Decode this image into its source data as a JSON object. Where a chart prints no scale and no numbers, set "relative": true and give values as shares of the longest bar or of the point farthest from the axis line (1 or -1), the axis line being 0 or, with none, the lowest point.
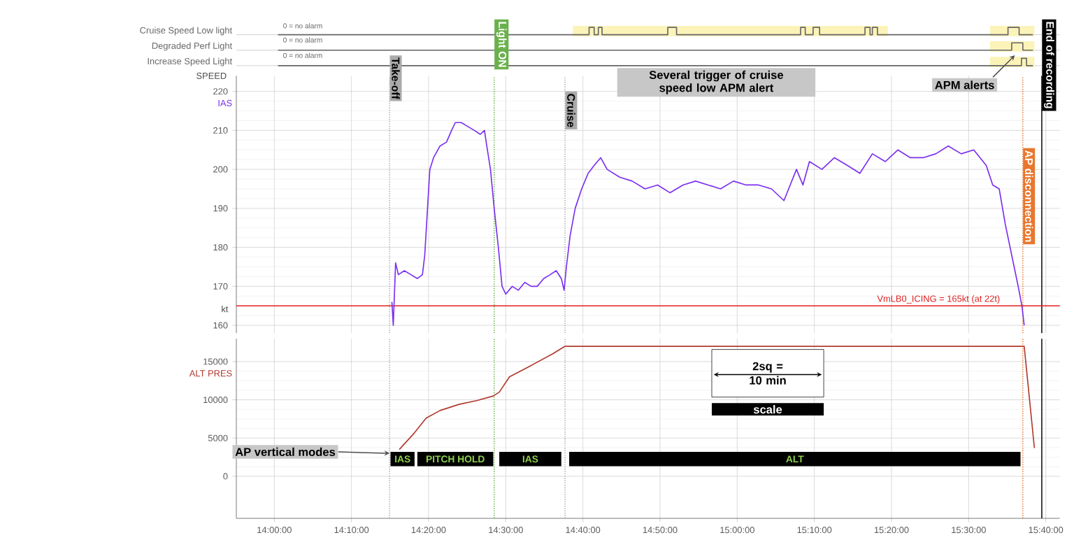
{
  "chart_data": [
    {
      "type": "step",
      "relative": true,
      "tick_labels": false,
      "xlim": [
        13.918,
        15.697
      ],
      "series": [
        {
          "name": "Cruise Speed Low light",
          "color": "#666666",
          "x": [
            14.008,
            14.68,
            14.691,
            14.7,
            14.708,
            14.85,
            14.869,
            15.137,
            15.147,
            15.164,
            15.178,
            15.276,
            15.287,
            15.292,
            15.303,
            15.585,
            15.609,
            15.639
          ],
          "values": [
            0,
            1,
            0,
            1,
            0,
            1,
            0,
            1,
            0,
            1,
            0,
            1,
            0,
            1,
            0,
            1,
            0,
            0
          ]
        }
      ],
      "bands": [
        {
          "axis": "x",
          "from": 14.645,
          "to": 15.325,
          "color": "#fbf3b8"
        },
        {
          "axis": "x",
          "from": 15.546,
          "to": 15.642,
          "color": "#fbf3b8"
        }
      ],
      "annotations": [
        "0 = no alarm"
      ]
    },
    {
      "type": "step",
      "relative": true,
      "tick_labels": false,
      "xlim": [
        13.918,
        15.697
      ],
      "series": [
        {
          "name": "Degraded Perf Light",
          "color": "#666666",
          "x": [
            14.008,
            15.593,
            15.617,
            15.639
          ],
          "values": [
            0,
            1,
            0,
            0
          ]
        }
      ],
      "bands": [
        {
          "axis": "x",
          "from": 15.546,
          "to": 15.642,
          "color": "#fbf3b8"
        }
      ],
      "annotations": [
        "0 = no alarm"
      ]
    },
    {
      "type": "step",
      "relative": true,
      "tick_labels": false,
      "xlim": [
        13.918,
        15.697
      ],
      "series": [
        {
          "name": "Increase Speed Light",
          "color": "#666666",
          "x": [
            14.008,
            15.614,
            15.625,
            15.639
          ],
          "values": [
            0,
            1,
            0,
            0
          ]
        }
      ],
      "bands": [
        {
          "axis": "x",
          "from": 15.546,
          "to": 15.642,
          "color": "#fbf3b8"
        }
      ],
      "annotations": [
        "0 = no alarm"
      ]
    },
    {
      "type": "line",
      "ylabel": "SPEED",
      "xlim": [
        13.918,
        15.697
      ],
      "ylim": [
        158,
        224
      ],
      "yticks": [
        160,
        170,
        180,
        190,
        200,
        210,
        220
      ],
      "xticks": [
        {
          "value": 14,
          "label": null
        },
        {
          "value": 14.1667,
          "label": null
        },
        {
          "value": 14.3333,
          "label": null
        },
        {
          "value": 14.5,
          "label": null
        },
        {
          "value": 14.6667,
          "label": null
        },
        {
          "value": 14.8333,
          "label": null
        },
        {
          "value": 15,
          "label": null
        },
        {
          "value": 15.1667,
          "label": null
        },
        {
          "value": 15.3333,
          "label": null
        },
        {
          "value": 15.5,
          "label": null
        },
        {
          "value": 15.6667,
          "label": null
        }
      ],
      "tick_labels": "y",
      "grid": true,
      "series": [
        {
          "name": "IAS",
          "color": "#7b2ff0",
          "x": [
            14.254,
            14.257,
            14.262,
            14.268,
            14.281,
            14.295,
            14.309,
            14.32,
            14.325,
            14.331,
            14.336,
            14.344,
            14.358,
            14.372,
            14.383,
            14.391,
            14.404,
            14.418,
            14.432,
            14.445,
            14.454,
            14.459,
            14.467,
            14.475,
            14.484,
            14.492,
            14.5,
            14.514,
            14.527,
            14.541,
            14.555,
            14.568,
            14.582,
            14.596,
            14.609,
            14.62,
            14.626,
            14.631,
            14.639,
            14.65,
            14.664,
            14.678,
            14.691,
            14.705,
            14.719,
            14.746,
            14.773,
            14.801,
            14.828,
            14.855,
            14.883,
            14.91,
            14.937,
            14.964,
            14.992,
            15.019,
            15.046,
            15.074,
            15.101,
            15.128,
            15.142,
            15.156,
            15.183,
            15.21,
            15.238,
            15.265,
            15.292,
            15.32,
            15.347,
            15.374,
            15.402,
            15.429,
            15.456,
            15.484,
            15.511,
            15.538,
            15.552,
            15.566,
            15.579,
            15.593,
            15.607,
            15.615,
            15.62
          ],
          "values": [
            166,
            160,
            176,
            173,
            174,
            173,
            172,
            173,
            178,
            190,
            200,
            203,
            206,
            207,
            210,
            212,
            212,
            211,
            210,
            209,
            210,
            206,
            200,
            190,
            180,
            170,
            168,
            170,
            169,
            171,
            170,
            170,
            172,
            173,
            174,
            172,
            169,
            175,
            183,
            190,
            195,
            199,
            201,
            203,
            200,
            198,
            197,
            195,
            196,
            194,
            196,
            197,
            196,
            195,
            197,
            196,
            196,
            195,
            192,
            200,
            196,
            202,
            200,
            203,
            201,
            199,
            204,
            202,
            205,
            203,
            203,
            204,
            206,
            204,
            205,
            201,
            196,
            195,
            186,
            178,
            170,
            165,
            160
          ]
        }
      ],
      "ref_lines": [
        {
          "axis": "x",
          "value": 14.249,
          "label": "Take-off",
          "color": "#aaaaaa",
          "line_style": "dotted"
        },
        {
          "axis": "x",
          "value": 14.475,
          "label": "Light ON",
          "color": "#6ab04c",
          "line_style": "dotted"
        },
        {
          "axis": "x",
          "value": 14.628,
          "label": "Cruise",
          "color": "#aaaaaa",
          "line_style": "dotted"
        },
        {
          "axis": "x",
          "value": 15.617,
          "label": "AP disconnection",
          "color": "#e8772e",
          "line_style": "dotted"
        },
        {
          "axis": "x",
          "value": 15.658,
          "label": "End of recording",
          "color": "#000000",
          "line_style": "solid"
        },
        {
          "axis": "y",
          "value": 165,
          "label": "VmLB0_ICING = 165kt (at 22t)",
          "color": "#e02020",
          "line_style": "solid"
        }
      ],
      "annotations": [
        "kt",
        "Several trigger of cruise speed low APM alert",
        "APM alerts"
      ]
    },
    {
      "type": "line",
      "xlim": [
        13.918,
        15.697
      ],
      "ylim": [
        -5500,
        18000
      ],
      "yticks": [
        0,
        5000,
        10000,
        15000
      ],
      "xticks": [
        {
          "value": 14,
          "label": "14:00:00"
        },
        {
          "value": 14.1667,
          "label": "14:10:00"
        },
        {
          "value": 14.3333,
          "label": "14:20:00"
        },
        {
          "value": 14.5,
          "label": "14:30:00"
        },
        {
          "value": 14.6667,
          "label": "14:40:00"
        },
        {
          "value": 14.8333,
          "label": "14:50:00"
        },
        {
          "value": 15,
          "label": "15:00:00"
        },
        {
          "value": 15.1667,
          "label": "15:10:00"
        },
        {
          "value": 15.3333,
          "label": "15:20:00"
        },
        {
          "value": 15.5,
          "label": "15:30:00"
        },
        {
          "value": 15.6667,
          "label": "15:40:00"
        }
      ],
      "grid": true,
      "series": [
        {
          "name": "ALT PRES",
          "color": "#b03a2e",
          "x": [
            14.27,
            14.303,
            14.328,
            14.358,
            14.399,
            14.437,
            14.473,
            14.486,
            14.508,
            14.555,
            14.601,
            14.628,
            15.62,
            15.642
          ],
          "values": [
            3500,
            5700,
            7600,
            8600,
            9400,
            9900,
            10500,
            11000,
            13000,
            14500,
            16000,
            17000,
            17000,
            3700
          ]
        }
      ],
      "bands": [
        {
          "axis": "x",
          "from": 14.251,
          "to": 14.303,
          "label": "IAS",
          "color": "#000000"
        },
        {
          "axis": "x",
          "from": 14.309,
          "to": 14.473,
          "label": "PITCH HOLD",
          "color": "#000000"
        },
        {
          "axis": "x",
          "from": 14.486,
          "to": 14.62,
          "label": "IAS",
          "color": "#000000"
        },
        {
          "axis": "x",
          "from": 14.637,
          "to": 15.612,
          "label": "ALT",
          "color": "#000000"
        }
      ],
      "ref_lines": [
        {
          "axis": "x",
          "value": 14.249,
          "color": "#aaaaaa",
          "line_style": "dotted"
        },
        {
          "axis": "x",
          "value": 14.475,
          "color": "#6ab04c",
          "line_style": "dotted"
        },
        {
          "axis": "x",
          "value": 14.628,
          "color": "#aaaaaa",
          "line_style": "dotted"
        },
        {
          "axis": "x",
          "value": 15.617,
          "color": "#e8772e",
          "line_style": "dotted"
        },
        {
          "axis": "x",
          "value": 15.658,
          "color": "#000000",
          "line_style": "solid"
        }
      ],
      "annotations": [
        {
          "text": "AP vertical modes",
          "x": 14.249,
          "y": 3000
        },
        "2sq = 10 min",
        "scale"
      ]
    }
  ]
}
